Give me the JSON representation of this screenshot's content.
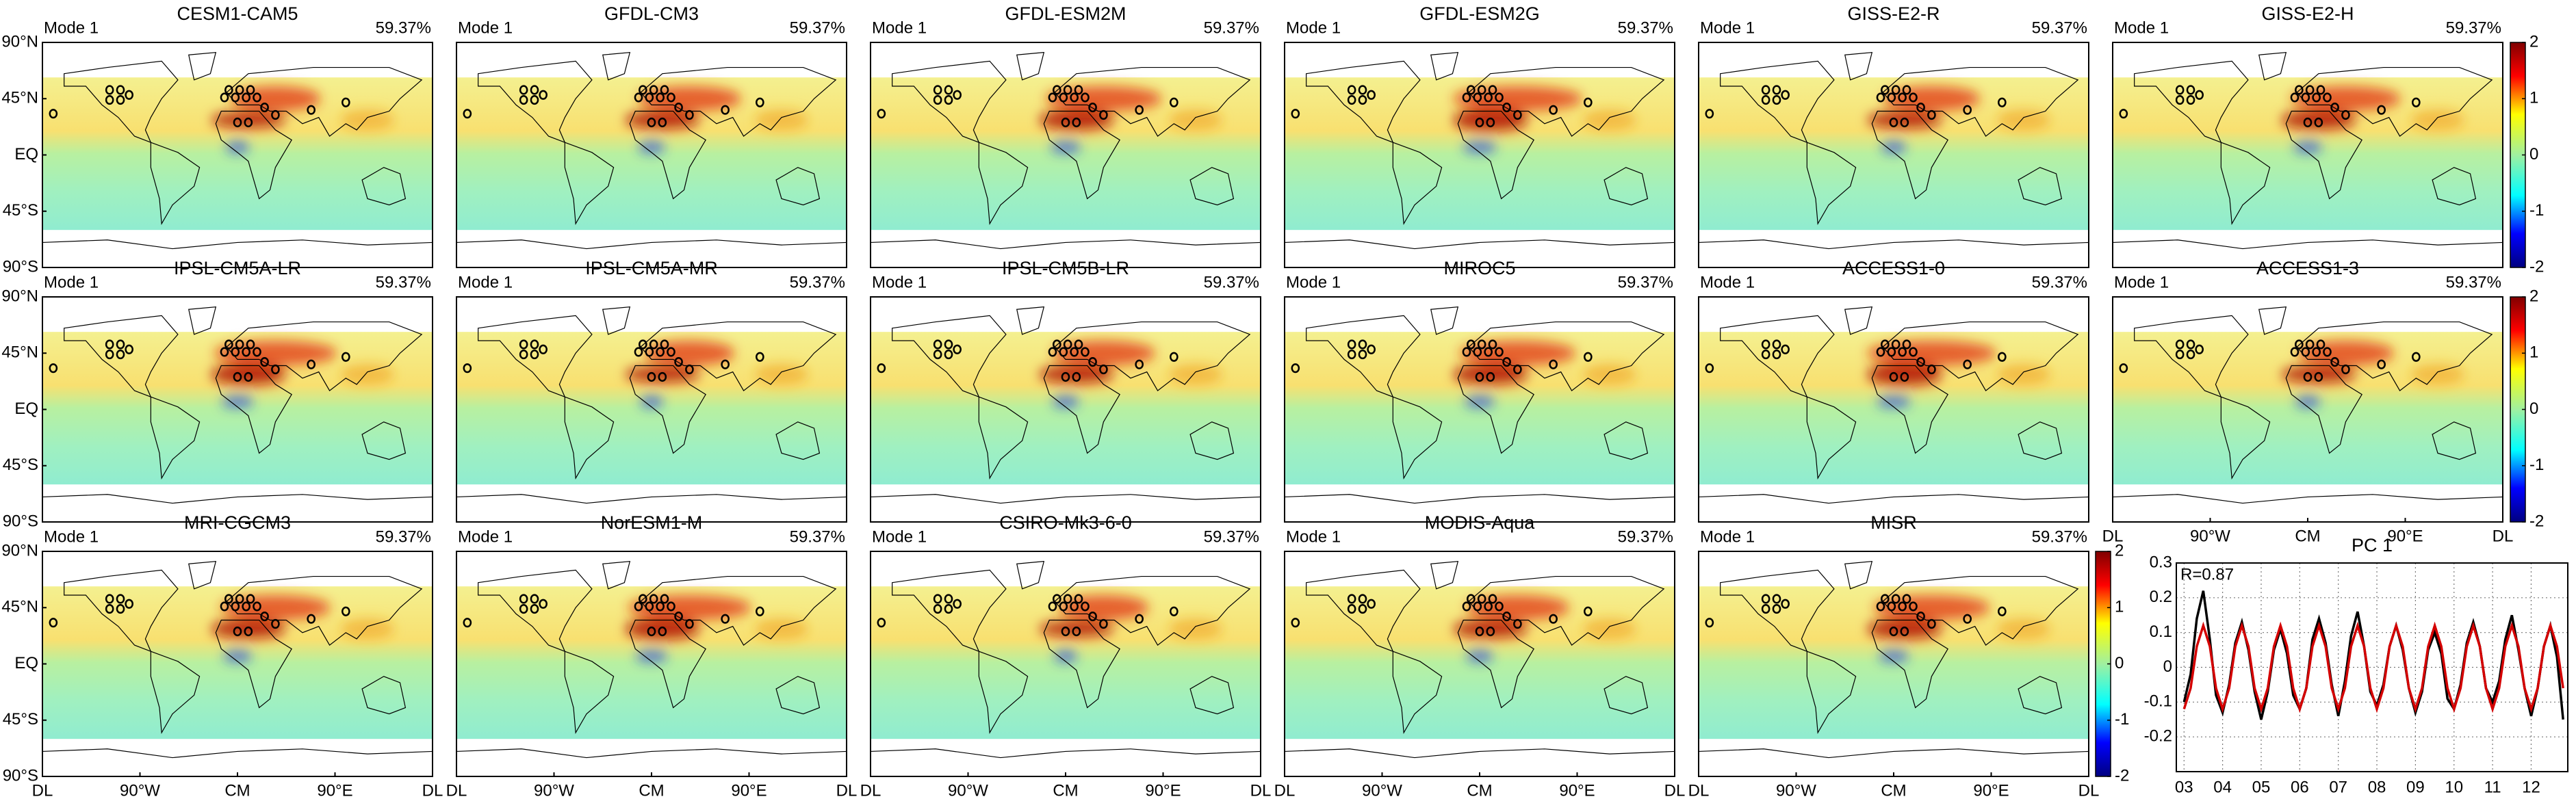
{
  "chart_data": [
    {
      "type": "map",
      "title": "CESM1-CAM5",
      "mode": "Mode 1",
      "variance": "59.37%",
      "xlim": [
        -180,
        180
      ],
      "ylim": [
        -90,
        90
      ],
      "yticks": [
        {
          "value": 90,
          "label": "90°N"
        },
        {
          "value": 45,
          "label": "45°N"
        },
        {
          "value": 0,
          "label": "EQ"
        },
        {
          "value": -45,
          "label": "45°S"
        },
        {
          "value": -90,
          "label": "90°S"
        }
      ]
    },
    {
      "type": "map",
      "title": "GFDL-CM3",
      "mode": "Mode 1",
      "variance": "59.37%",
      "xlim": [
        -180,
        180
      ],
      "ylim": [
        -90,
        90
      ]
    },
    {
      "type": "map",
      "title": "GFDL-ESM2M",
      "mode": "Mode 1",
      "variance": "59.37%",
      "xlim": [
        -180,
        180
      ],
      "ylim": [
        -90,
        90
      ]
    },
    {
      "type": "map",
      "title": "GFDL-ESM2G",
      "mode": "Mode 1",
      "variance": "59.37%",
      "xlim": [
        -180,
        180
      ],
      "ylim": [
        -90,
        90
      ]
    },
    {
      "type": "map",
      "title": "GISS-E2-R",
      "mode": "Mode 1",
      "variance": "59.37%",
      "xlim": [
        -180,
        180
      ],
      "ylim": [
        -90,
        90
      ]
    },
    {
      "type": "map",
      "title": "GISS-E2-H",
      "mode": "Mode 1",
      "variance": "59.37%",
      "xlim": [
        -180,
        180
      ],
      "ylim": [
        -90,
        90
      ]
    },
    {
      "type": "map",
      "title": "IPSL-CM5A-LR",
      "mode": "Mode 1",
      "variance": "59.37%",
      "xlim": [
        -180,
        180
      ],
      "ylim": [
        -90,
        90
      ],
      "yticks": [
        {
          "value": 90,
          "label": "90°N"
        },
        {
          "value": 45,
          "label": "45°N"
        },
        {
          "value": 0,
          "label": "EQ"
        },
        {
          "value": -45,
          "label": "45°S"
        },
        {
          "value": -90,
          "label": "90°S"
        }
      ]
    },
    {
      "type": "map",
      "title": "IPSL-CM5A-MR",
      "mode": "Mode 1",
      "variance": "59.37%",
      "xlim": [
        -180,
        180
      ],
      "ylim": [
        -90,
        90
      ]
    },
    {
      "type": "map",
      "title": "IPSL-CM5B-LR",
      "mode": "Mode 1",
      "variance": "59.37%",
      "xlim": [
        -180,
        180
      ],
      "ylim": [
        -90,
        90
      ]
    },
    {
      "type": "map",
      "title": "MIROC5",
      "mode": "Mode 1",
      "variance": "59.37%",
      "xlim": [
        -180,
        180
      ],
      "ylim": [
        -90,
        90
      ]
    },
    {
      "type": "map",
      "title": "ACCESS1-0",
      "mode": "Mode 1",
      "variance": "59.37%",
      "xlim": [
        -180,
        180
      ],
      "ylim": [
        -90,
        90
      ]
    },
    {
      "type": "map",
      "title": "ACCESS1-3",
      "mode": "Mode 1",
      "variance": "59.37%",
      "xlim": [
        -180,
        180
      ],
      "ylim": [
        -90,
        90
      ],
      "xticks": [
        {
          "value": -180,
          "label": "DL"
        },
        {
          "value": -90,
          "label": "90°W"
        },
        {
          "value": 0,
          "label": "CM"
        },
        {
          "value": 90,
          "label": "90°E"
        },
        {
          "value": 180,
          "label": "DL"
        }
      ]
    },
    {
      "type": "map",
      "title": "MRI-CGCM3",
      "mode": "Mode 1",
      "variance": "59.37%",
      "xlim": [
        -180,
        180
      ],
      "ylim": [
        -90,
        90
      ],
      "yticks": [
        {
          "value": 90,
          "label": "90°N"
        },
        {
          "value": 45,
          "label": "45°N"
        },
        {
          "value": 0,
          "label": "EQ"
        },
        {
          "value": -45,
          "label": "45°S"
        },
        {
          "value": -90,
          "label": "90°S"
        }
      ],
      "xticks": [
        {
          "value": -180,
          "label": "DL"
        },
        {
          "value": -90,
          "label": "90°W"
        },
        {
          "value": 0,
          "label": "CM"
        },
        {
          "value": 90,
          "label": "90°E"
        },
        {
          "value": 180,
          "label": "DL"
        }
      ]
    },
    {
      "type": "map",
      "title": "NorESM1-M",
      "mode": "Mode 1",
      "variance": "59.37%",
      "xlim": [
        -180,
        180
      ],
      "ylim": [
        -90,
        90
      ],
      "xticks": [
        {
          "value": -180,
          "label": "DL"
        },
        {
          "value": -90,
          "label": "90°W"
        },
        {
          "value": 0,
          "label": "CM"
        },
        {
          "value": 90,
          "label": "90°E"
        },
        {
          "value": 180,
          "label": "DL"
        }
      ]
    },
    {
      "type": "map",
      "title": "CSIRO-Mk3-6-0",
      "mode": "Mode 1",
      "variance": "59.37%",
      "xlim": [
        -180,
        180
      ],
      "ylim": [
        -90,
        90
      ],
      "xticks": [
        {
          "value": -180,
          "label": "DL"
        },
        {
          "value": -90,
          "label": "90°W"
        },
        {
          "value": 0,
          "label": "CM"
        },
        {
          "value": 90,
          "label": "90°E"
        },
        {
          "value": 180,
          "label": "DL"
        }
      ]
    },
    {
      "type": "map",
      "title": "MODIS-Aqua",
      "mode": "Mode 1",
      "variance": "59.37%",
      "xlim": [
        -180,
        180
      ],
      "ylim": [
        -90,
        90
      ],
      "xticks": [
        {
          "value": -180,
          "label": "DL"
        },
        {
          "value": -90,
          "label": "90°W"
        },
        {
          "value": 0,
          "label": "CM"
        },
        {
          "value": 90,
          "label": "90°E"
        },
        {
          "value": 180,
          "label": "DL"
        }
      ]
    },
    {
      "type": "map",
      "title": "MISR",
      "mode": "Mode 1",
      "variance": "59.37%",
      "xlim": [
        -180,
        180
      ],
      "ylim": [
        -90,
        90
      ],
      "xticks": [
        {
          "value": -180,
          "label": "DL"
        },
        {
          "value": -90,
          "label": "90°W"
        },
        {
          "value": 0,
          "label": "CM"
        },
        {
          "value": 90,
          "label": "90°E"
        },
        {
          "value": 180,
          "label": "DL"
        }
      ]
    },
    {
      "type": "colorbar",
      "ylim": [
        -2,
        2
      ],
      "yticks": [
        2,
        1,
        0,
        -1,
        -2
      ]
    },
    {
      "type": "colorbar",
      "ylim": [
        -2,
        2
      ],
      "yticks": [
        2,
        1,
        0,
        -1,
        -2
      ]
    },
    {
      "type": "colorbar",
      "ylim": [
        -2,
        2
      ],
      "yticks": [
        2,
        1,
        0,
        -1,
        -2
      ]
    },
    {
      "type": "line",
      "title": "PC 1",
      "annotation": "R=0.87",
      "grid": true,
      "xlim": [
        2.8,
        12.95
      ],
      "ylim": [
        -0.3,
        0.3
      ],
      "xticks": [
        {
          "value": 3,
          "label": "03"
        },
        {
          "value": 4,
          "label": "04"
        },
        {
          "value": 5,
          "label": "05"
        },
        {
          "value": 6,
          "label": "06"
        },
        {
          "value": 7,
          "label": "07"
        },
        {
          "value": 8,
          "label": "08"
        },
        {
          "value": 9,
          "label": "09"
        },
        {
          "value": 10,
          "label": "10"
        },
        {
          "value": 11,
          "label": "11"
        },
        {
          "value": 12,
          "label": "12"
        }
      ],
      "yticks": [
        0.3,
        0.2,
        0.1,
        0,
        -0.1,
        -0.2
      ],
      "x": [
        3,
        3.17,
        3.33,
        3.5,
        3.67,
        3.83,
        4,
        4.17,
        4.33,
        4.5,
        4.67,
        4.83,
        5,
        5.17,
        5.33,
        5.5,
        5.67,
        5.83,
        6,
        6.17,
        6.33,
        6.5,
        6.67,
        6.83,
        7,
        7.17,
        7.33,
        7.5,
        7.67,
        7.83,
        8,
        8.17,
        8.33,
        8.5,
        8.67,
        8.83,
        9,
        9.17,
        9.33,
        9.5,
        9.67,
        9.83,
        10,
        10.17,
        10.33,
        10.5,
        10.67,
        10.83,
        11,
        11.17,
        11.33,
        11.5,
        11.67,
        11.83,
        12,
        12.17,
        12.33,
        12.5,
        12.67,
        12.83
      ],
      "series": [
        {
          "color": "#000000",
          "values": [
            -0.1,
            -0.02,
            0.14,
            0.22,
            0.08,
            -0.08,
            -0.13,
            -0.05,
            0.07,
            0.13,
            0.05,
            -0.07,
            -0.15,
            -0.07,
            0.05,
            0.11,
            0.04,
            -0.08,
            -0.12,
            -0.06,
            0.08,
            0.14,
            0.07,
            -0.05,
            -0.14,
            -0.04,
            0.09,
            0.16,
            0.06,
            -0.07,
            -0.11,
            -0.05,
            0.06,
            0.12,
            0.05,
            -0.06,
            -0.13,
            -0.07,
            0.05,
            0.1,
            0.04,
            -0.09,
            -0.12,
            -0.05,
            0.07,
            0.13,
            0.06,
            -0.06,
            -0.1,
            -0.04,
            0.08,
            0.15,
            0.05,
            -0.06,
            -0.14,
            -0.06,
            0.06,
            0.12,
            0.03,
            -0.15
          ]
        },
        {
          "color": "#d40000",
          "values": [
            -0.12,
            -0.06,
            0.06,
            0.12,
            0.06,
            -0.06,
            -0.12,
            -0.06,
            0.06,
            0.12,
            0.06,
            -0.06,
            -0.12,
            -0.06,
            0.06,
            0.12,
            0.06,
            -0.06,
            -0.12,
            -0.06,
            0.06,
            0.12,
            0.06,
            -0.06,
            -0.12,
            -0.06,
            0.06,
            0.12,
            0.06,
            -0.06,
            -0.12,
            -0.06,
            0.06,
            0.12,
            0.06,
            -0.06,
            -0.12,
            -0.06,
            0.06,
            0.12,
            0.06,
            -0.06,
            -0.12,
            -0.06,
            0.06,
            0.12,
            0.06,
            -0.06,
            -0.12,
            -0.06,
            0.06,
            0.12,
            0.06,
            -0.06,
            -0.12,
            -0.06,
            0.06,
            0.12,
            0.06,
            -0.06
          ]
        }
      ]
    }
  ]
}
